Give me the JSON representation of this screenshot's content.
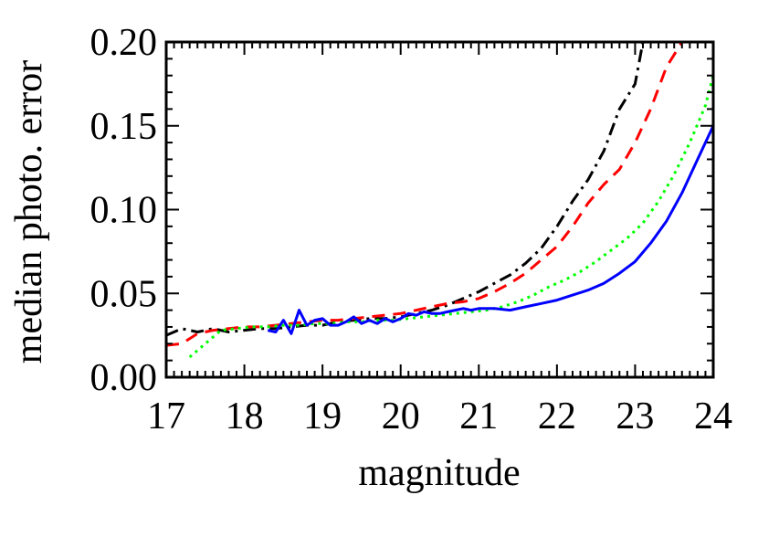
{
  "chart_data": {
    "type": "line",
    "title": "",
    "xlabel": "magnitude",
    "ylabel": "median photo. error",
    "xlim": [
      17,
      24
    ],
    "ylim": [
      0.0,
      0.2
    ],
    "x_ticks": [
      17,
      18,
      19,
      20,
      21,
      22,
      23,
      24
    ],
    "x_tick_labels": [
      "17",
      "18",
      "19",
      "20",
      "21",
      "22",
      "23",
      "24"
    ],
    "y_ticks": [
      0.0,
      0.05,
      0.1,
      0.15,
      0.2
    ],
    "y_tick_labels": [
      "0.00",
      "0.05",
      "0.10",
      "0.15",
      "0.20"
    ],
    "grid": false,
    "legend": "none",
    "series": [
      {
        "color": "#000000",
        "dash": "dash-dot",
        "x": [
          17.0,
          17.2,
          17.4,
          17.6,
          17.8,
          18.0,
          18.2,
          18.4,
          18.6,
          18.8,
          19.0,
          19.2,
          19.4,
          19.6,
          19.8,
          20.0,
          20.2,
          20.4,
          20.6,
          20.8,
          21.0,
          21.2,
          21.4,
          21.6,
          21.8,
          22.0,
          22.2,
          22.4,
          22.6,
          22.8,
          23.0,
          23.1
        ],
        "y": [
          0.025,
          0.029,
          0.027,
          0.029,
          0.027,
          0.028,
          0.029,
          0.029,
          0.03,
          0.031,
          0.031,
          0.033,
          0.034,
          0.035,
          0.035,
          0.036,
          0.038,
          0.04,
          0.043,
          0.047,
          0.051,
          0.056,
          0.061,
          0.068,
          0.077,
          0.09,
          0.105,
          0.118,
          0.135,
          0.16,
          0.175,
          0.2
        ]
      },
      {
        "color": "#ff0000",
        "dash": "dashed",
        "x": [
          17.0,
          17.2,
          17.4,
          17.6,
          17.8,
          18.0,
          18.2,
          18.4,
          18.6,
          18.8,
          19.0,
          19.2,
          19.4,
          19.6,
          19.8,
          20.0,
          20.2,
          20.4,
          20.6,
          20.8,
          21.0,
          21.2,
          21.4,
          21.6,
          21.8,
          22.0,
          22.2,
          22.4,
          22.6,
          22.8,
          23.0,
          23.2,
          23.4,
          23.6
        ],
        "y": [
          0.019,
          0.02,
          0.026,
          0.028,
          0.029,
          0.03,
          0.03,
          0.031,
          0.032,
          0.033,
          0.034,
          0.034,
          0.035,
          0.036,
          0.037,
          0.038,
          0.04,
          0.042,
          0.044,
          0.045,
          0.047,
          0.051,
          0.056,
          0.062,
          0.07,
          0.078,
          0.09,
          0.104,
          0.115,
          0.124,
          0.14,
          0.16,
          0.185,
          0.2
        ]
      },
      {
        "color": "#00ff00",
        "dash": "dotted",
        "x": [
          17.3,
          17.5,
          17.7,
          17.9,
          18.1,
          18.3,
          18.5,
          18.7,
          18.9,
          19.1,
          19.3,
          19.5,
          19.7,
          19.9,
          20.1,
          20.3,
          20.5,
          20.7,
          20.9,
          21.1,
          21.3,
          21.5,
          21.7,
          21.9,
          22.1,
          22.3,
          22.5,
          22.7,
          22.9,
          23.1,
          23.3,
          23.5,
          23.7,
          23.9,
          24.0
        ],
        "y": [
          0.012,
          0.02,
          0.028,
          0.029,
          0.03,
          0.03,
          0.031,
          0.031,
          0.032,
          0.032,
          0.033,
          0.033,
          0.034,
          0.034,
          0.035,
          0.036,
          0.037,
          0.038,
          0.039,
          0.04,
          0.042,
          0.045,
          0.049,
          0.054,
          0.058,
          0.063,
          0.069,
          0.076,
          0.083,
          0.092,
          0.105,
          0.121,
          0.14,
          0.162,
          0.18
        ]
      },
      {
        "color": "#0000ff",
        "dash": "solid",
        "x": [
          18.3,
          18.4,
          18.5,
          18.6,
          18.7,
          18.8,
          18.9,
          19.0,
          19.1,
          19.2,
          19.3,
          19.4,
          19.5,
          19.6,
          19.7,
          19.8,
          19.9,
          20.0,
          20.1,
          20.2,
          20.3,
          20.4,
          20.5,
          20.6,
          20.7,
          20.8,
          20.9,
          21.0,
          21.2,
          21.4,
          21.6,
          21.8,
          22.0,
          22.2,
          22.4,
          22.6,
          22.8,
          23.0,
          23.2,
          23.4,
          23.6,
          23.8,
          24.0
        ],
        "y": [
          0.028,
          0.027,
          0.034,
          0.026,
          0.04,
          0.031,
          0.034,
          0.035,
          0.031,
          0.031,
          0.033,
          0.036,
          0.032,
          0.034,
          0.032,
          0.035,
          0.033,
          0.035,
          0.038,
          0.037,
          0.039,
          0.038,
          0.038,
          0.039,
          0.04,
          0.041,
          0.04,
          0.041,
          0.041,
          0.04,
          0.042,
          0.044,
          0.046,
          0.049,
          0.052,
          0.056,
          0.062,
          0.069,
          0.08,
          0.093,
          0.11,
          0.13,
          0.15
        ]
      }
    ]
  }
}
